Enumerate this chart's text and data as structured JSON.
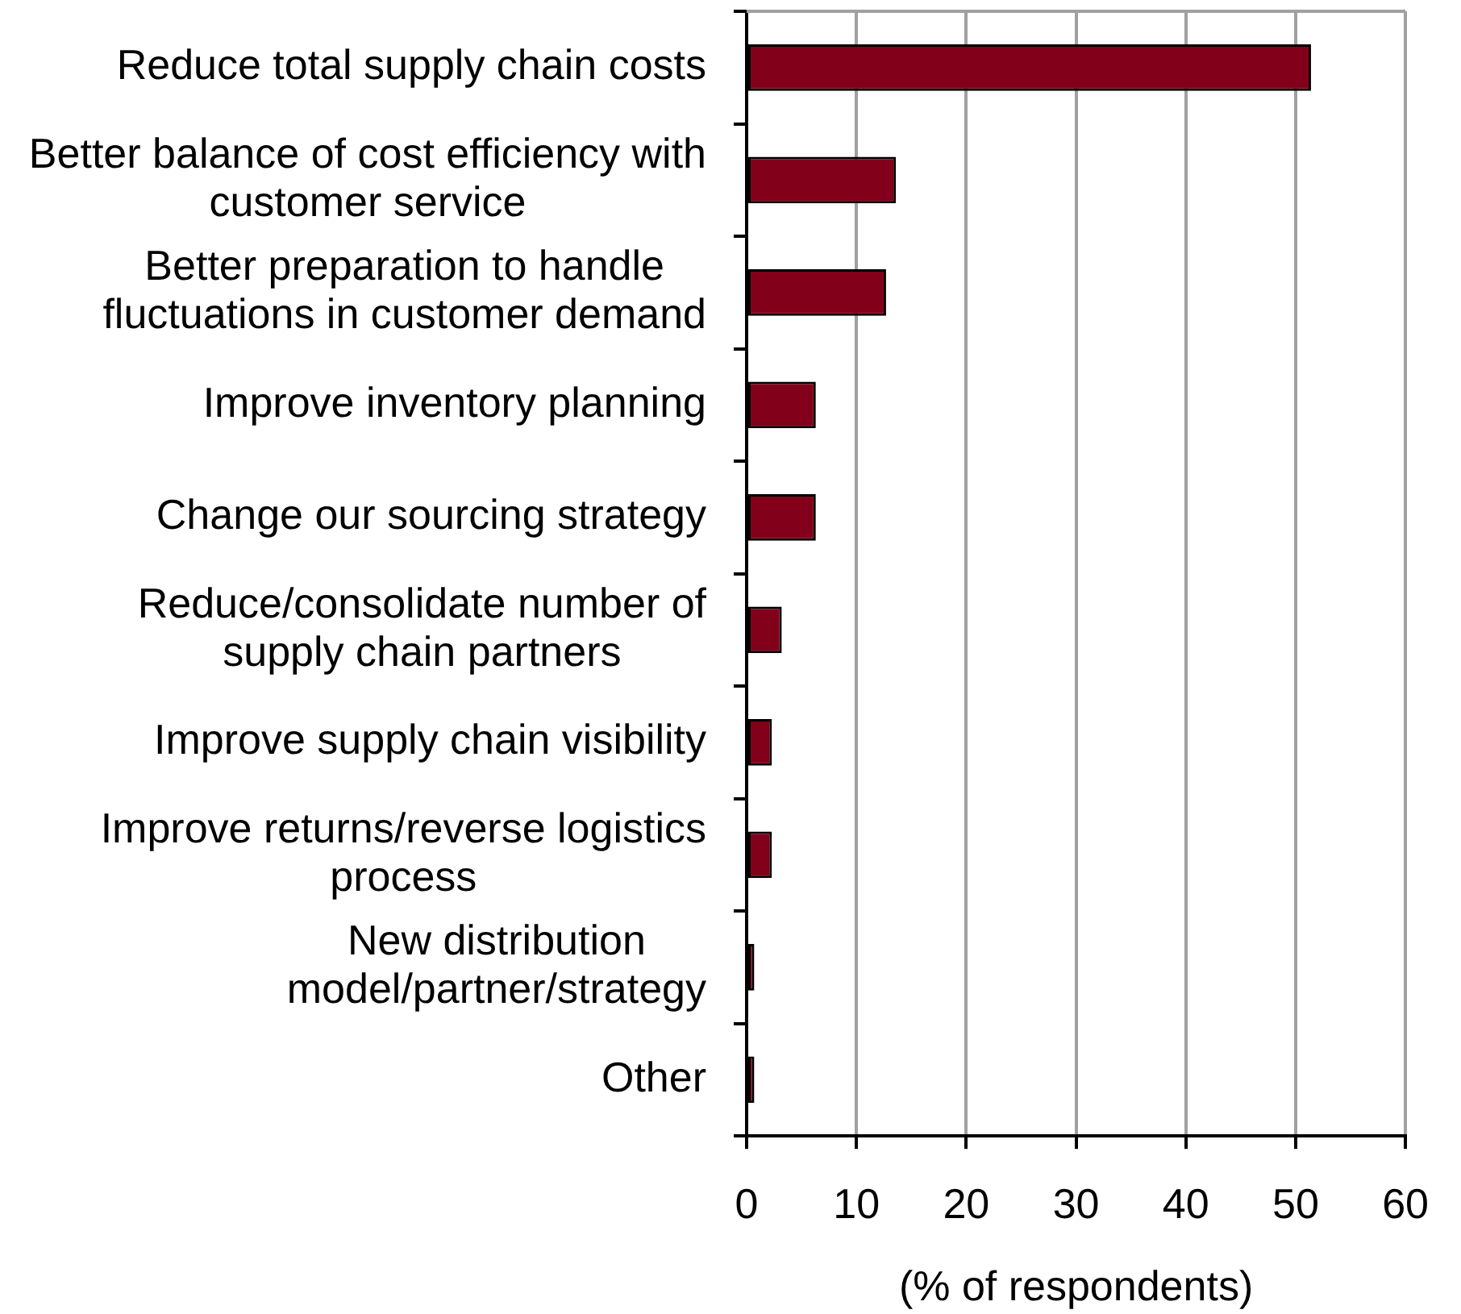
{
  "chart_data": {
    "type": "bar",
    "orientation": "horizontal",
    "categories": [
      "Reduce total supply chain costs",
      "Better balance of cost efficiency with customer service",
      "Better preparation to handle fluctuations in customer demand",
      "Improve inventory planning",
      "Change our sourcing strategy",
      "Reduce/consolidate number of supply chain partners",
      "Improve supply chain visibility",
      "Improve returns/reverse logistics process",
      "New distribution model/partner/strategy",
      "Other"
    ],
    "values": [
      51.4,
      13.6,
      12.7,
      6.3,
      6.3,
      3.2,
      2.3,
      2.3,
      0.7,
      0.7
    ],
    "color": "#82001a",
    "xlabel": "(% of respondents)",
    "xlim": [
      0,
      60
    ],
    "xticks": [
      0,
      10,
      20,
      30,
      40,
      50,
      60
    ],
    "grid": "x"
  }
}
